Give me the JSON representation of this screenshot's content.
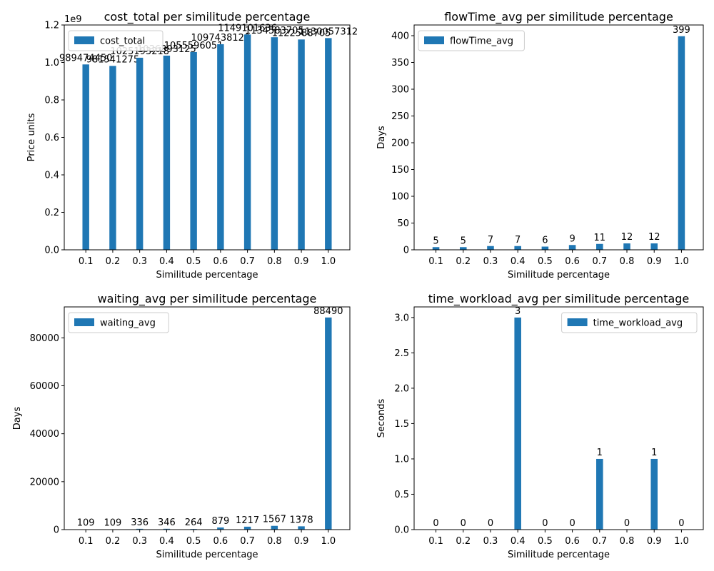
{
  "chart_data": [
    {
      "type": "bar",
      "title": "cost_total per similitude percentage",
      "xlabel": "Similitude percentage",
      "ylabel": "Price units",
      "axis_offset_label": "1e9",
      "categories": [
        "0.1",
        "0.2",
        "0.3",
        "0.4",
        "0.5",
        "0.6",
        "0.7",
        "0.8",
        "0.9",
        "1.0"
      ],
      "series": [
        {
          "name": "cost_total",
          "values": [
            989474450,
            981541275,
            1025193218,
            1036393125,
            1055596051,
            1097438120,
            1149101636,
            1134583705,
            1122588705,
            1130057312
          ],
          "labels": [
            "989474450",
            "981541275",
            "1025193218",
            "1036393125",
            "1055596051",
            "1097438120",
            "1149101636",
            "1134583705",
            "1122588705",
            "1130057312"
          ]
        }
      ],
      "ylim": [
        0,
        1200000000.0
      ],
      "yticks": [
        0,
        200000000,
        400000000,
        600000000,
        800000000,
        1000000000,
        1200000000
      ],
      "ytick_labels": [
        "0.0",
        "0.2",
        "0.4",
        "0.6",
        "0.8",
        "1.0",
        "1.2"
      ],
      "legend": "top-left",
      "grid": false,
      "color": "#1f77b4"
    },
    {
      "type": "bar",
      "title": "flowTime_avg per similitude percentage",
      "xlabel": "Similitude percentage",
      "ylabel": "Days",
      "categories": [
        "0.1",
        "0.2",
        "0.3",
        "0.4",
        "0.5",
        "0.6",
        "0.7",
        "0.8",
        "0.9",
        "1.0"
      ],
      "series": [
        {
          "name": "flowTime_avg",
          "values": [
            5,
            5,
            7,
            7,
            6,
            9,
            11,
            12,
            12,
            399
          ],
          "labels": [
            "5",
            "5",
            "7",
            "7",
            "6",
            "9",
            "11",
            "12",
            "12",
            "399"
          ]
        }
      ],
      "ylim": [
        0,
        420
      ],
      "yticks": [
        0,
        50,
        100,
        150,
        200,
        250,
        300,
        350,
        400
      ],
      "ytick_labels": [
        "0",
        "50",
        "100",
        "150",
        "200",
        "250",
        "300",
        "350",
        "400"
      ],
      "legend": "top-left",
      "grid": false,
      "color": "#1f77b4"
    },
    {
      "type": "bar",
      "title": "waiting_avg per similitude percentage",
      "xlabel": "Similitude percentage",
      "ylabel": "Days",
      "categories": [
        "0.1",
        "0.2",
        "0.3",
        "0.4",
        "0.5",
        "0.6",
        "0.7",
        "0.8",
        "0.9",
        "1.0"
      ],
      "series": [
        {
          "name": "waiting_avg",
          "values": [
            109,
            109,
            336,
            346,
            264,
            879,
            1217,
            1567,
            1378,
            88490
          ],
          "labels": [
            "109",
            "109",
            "336",
            "346",
            "264",
            "879",
            "1217",
            "1567",
            "1378",
            "88490"
          ]
        }
      ],
      "ylim": [
        0,
        92900
      ],
      "yticks": [
        0,
        20000,
        40000,
        60000,
        80000
      ],
      "ytick_labels": [
        "0",
        "20000",
        "40000",
        "60000",
        "80000"
      ],
      "legend": "top-left",
      "grid": false,
      "color": "#1f77b4"
    },
    {
      "type": "bar",
      "title": "time_workload_avg per similitude percentage",
      "xlabel": "Similitude percentage",
      "ylabel": "Seconds",
      "categories": [
        "0.1",
        "0.2",
        "0.3",
        "0.4",
        "0.5",
        "0.6",
        "0.7",
        "0.8",
        "0.9",
        "1.0"
      ],
      "series": [
        {
          "name": "time_workload_avg",
          "values": [
            0,
            0,
            0,
            3,
            0,
            0,
            1,
            0,
            1,
            0
          ],
          "labels": [
            "0",
            "0",
            "0",
            "3",
            "0",
            "0",
            "1",
            "0",
            "1",
            "0"
          ]
        }
      ],
      "ylim": [
        0,
        3.15
      ],
      "yticks": [
        0,
        0.5,
        1.0,
        1.5,
        2.0,
        2.5,
        3.0
      ],
      "ytick_labels": [
        "0.0",
        "0.5",
        "1.0",
        "1.5",
        "2.0",
        "2.5",
        "3.0"
      ],
      "legend": "top-right",
      "grid": false,
      "color": "#1f77b4"
    }
  ]
}
